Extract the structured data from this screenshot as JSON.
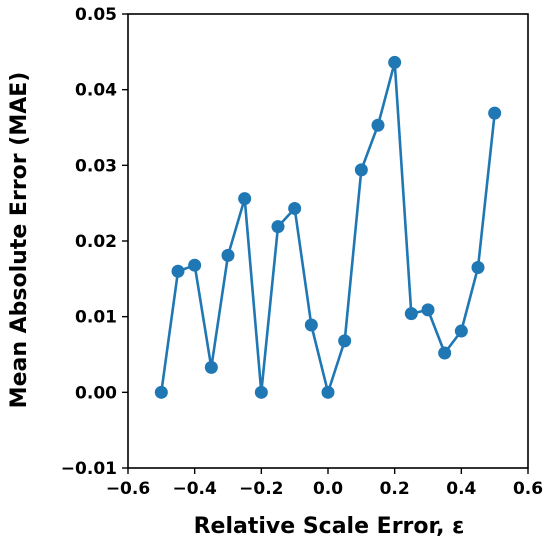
{
  "chart_data": {
    "type": "line",
    "title": "",
    "xlabel": "Relative Scale Error, ε",
    "ylabel": "Mean Absolute Error (MAE)",
    "xlim": [
      -0.6,
      0.6
    ],
    "ylim": [
      -0.01,
      0.05
    ],
    "xticks": [
      "−0.6",
      "−0.4",
      "−0.2",
      "0.0",
      "0.2",
      "0.4",
      "0.6"
    ],
    "yticks": [
      "−0.01",
      "0.00",
      "0.01",
      "0.02",
      "0.03",
      "0.04",
      "0.05"
    ],
    "xtick_values": [
      -0.6,
      -0.4,
      -0.2,
      0.0,
      0.2,
      0.4,
      0.6
    ],
    "ytick_values": [
      -0.01,
      0.0,
      0.01,
      0.02,
      0.03,
      0.04,
      0.05
    ],
    "grid": false,
    "legend": "none",
    "series": [
      {
        "color": "#1f77b4",
        "marker": "circle",
        "x": [
          -0.5,
          -0.45,
          -0.4,
          -0.35,
          -0.3,
          -0.25,
          -0.2,
          -0.15,
          -0.1,
          -0.05,
          0.0,
          0.05,
          0.1,
          0.15,
          0.2,
          0.25,
          0.3,
          0.35,
          0.4,
          0.45,
          0.5
        ],
        "y": [
          0.0,
          0.016,
          0.0168,
          0.0033,
          0.0181,
          0.0256,
          0.0,
          0.0219,
          0.0243,
          0.0089,
          0.0,
          0.0068,
          0.0294,
          0.0353,
          0.0436,
          0.0104,
          0.0109,
          0.0052,
          0.0081,
          0.0165,
          0.0369
        ]
      }
    ]
  }
}
